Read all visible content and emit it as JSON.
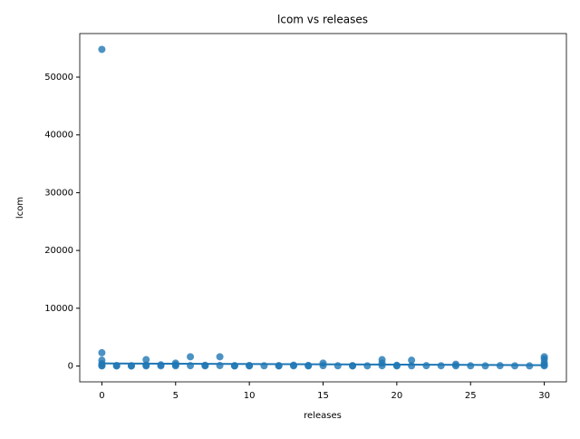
{
  "chart_data": {
    "type": "scatter",
    "title": "lcom vs releases",
    "xlabel": "releases",
    "ylabel": "lcom",
    "color": "#1f77b4",
    "x": [
      0,
      0,
      0,
      0,
      0,
      0,
      1,
      1,
      2,
      2,
      3,
      3,
      3,
      4,
      4,
      5,
      5,
      5,
      6,
      6,
      7,
      7,
      8,
      8,
      9,
      9,
      10,
      10,
      11,
      12,
      12,
      13,
      13,
      14,
      14,
      15,
      15,
      16,
      17,
      17,
      18,
      19,
      19,
      19,
      20,
      20,
      21,
      21,
      22,
      23,
      24,
      24,
      25,
      26,
      27,
      28,
      29,
      30,
      30,
      30,
      30,
      30
    ],
    "y": [
      54800,
      2300,
      1000,
      400,
      100,
      20,
      80,
      10,
      50,
      5,
      1100,
      150,
      20,
      200,
      30,
      500,
      200,
      40,
      1600,
      60,
      120,
      30,
      1600,
      80,
      60,
      10,
      90,
      20,
      40,
      70,
      10,
      150,
      30,
      100,
      20,
      500,
      60,
      40,
      70,
      10,
      30,
      1100,
      500,
      50,
      120,
      20,
      1000,
      40,
      60,
      50,
      300,
      30,
      40,
      20,
      60,
      30,
      20,
      1600,
      1200,
      600,
      200,
      30
    ],
    "fit": {
      "x": [
        0,
        30
      ],
      "y": [
        450,
        150
      ]
    },
    "xlim": [
      -1.5,
      31.5
    ],
    "xticks": [
      0,
      5,
      10,
      15,
      20,
      25,
      30
    ],
    "ylim": [
      -2740,
      57540
    ],
    "yticks": [
      0,
      10000,
      20000,
      30000,
      40000,
      50000
    ]
  }
}
